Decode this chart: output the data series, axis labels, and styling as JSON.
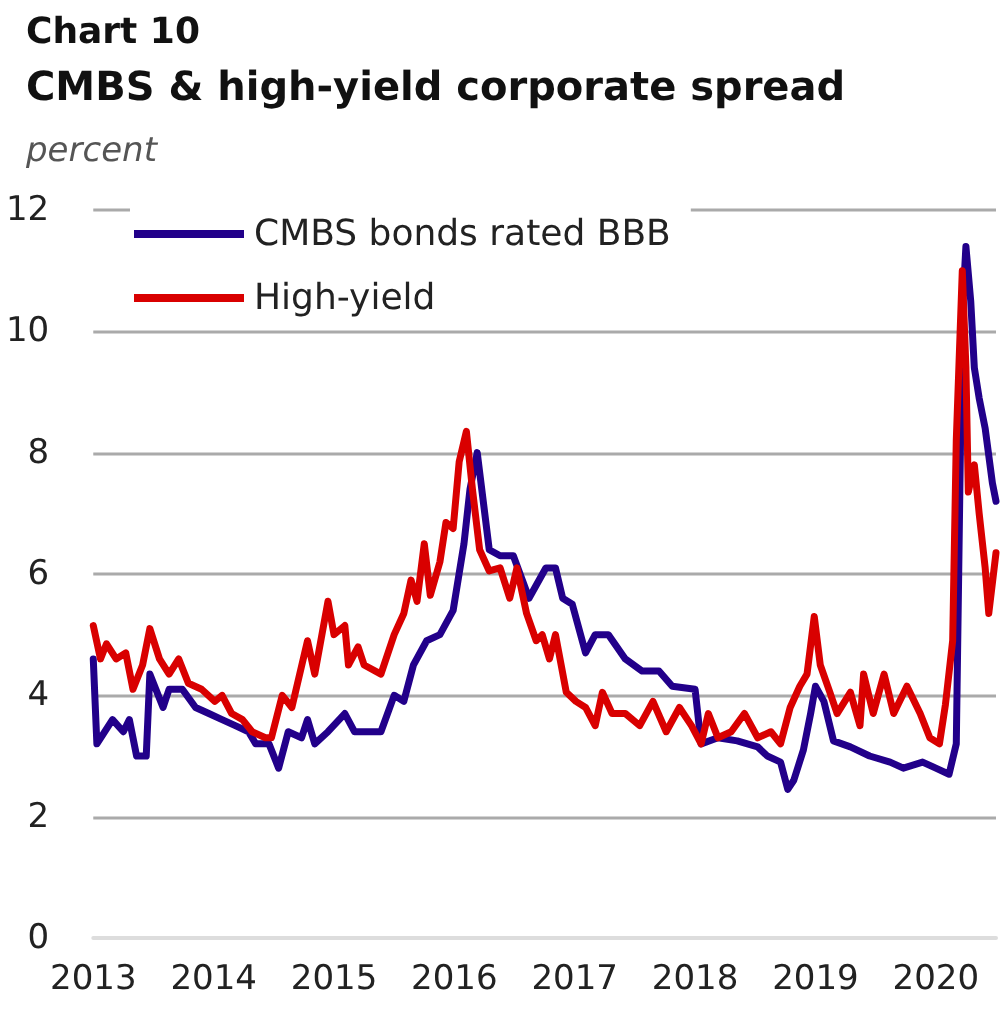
{
  "chart_data": {
    "type": "line",
    "title": "Chart 10",
    "subtitle": "CMBS & high-yield corporate spread",
    "ylabel": "percent",
    "xlim": [
      2013,
      2020.5
    ],
    "xticks": [
      2013,
      2014,
      2015,
      2016,
      2017,
      2018,
      2019,
      2020
    ],
    "ylim": [
      0,
      12
    ],
    "yticks": [
      0,
      2,
      4,
      6,
      8,
      10,
      12
    ],
    "grid": "y",
    "legend": "top left",
    "marker": "none",
    "line_style": "solid",
    "series": [
      {
        "name": "CMBS bonds rated BBB",
        "color": "#22008a",
        "x": [
          2013.0,
          2013.03,
          2013.16,
          2013.25,
          2013.3,
          2013.36,
          2013.44,
          2013.47,
          2013.58,
          2013.63,
          2013.74,
          2013.85,
          2013.96,
          2014.07,
          2014.18,
          2014.29,
          2014.35,
          2014.46,
          2014.54,
          2014.62,
          2014.73,
          2014.78,
          2014.84,
          2014.95,
          2015.09,
          2015.17,
          2015.39,
          2015.5,
          2015.58,
          2015.66,
          2015.77,
          2015.88,
          2015.99,
          2016.08,
          2016.13,
          2016.19,
          2016.24,
          2016.29,
          2016.38,
          2016.49,
          2016.62,
          2016.76,
          2016.84,
          2016.9,
          2016.98,
          2017.09,
          2017.17,
          2017.28,
          2017.42,
          2017.56,
          2017.7,
          2017.81,
          2018.0,
          2018.05,
          2018.19,
          2018.35,
          2018.52,
          2018.6,
          2018.71,
          2018.77,
          2018.82,
          2018.9,
          2018.96,
          2019.0,
          2019.07,
          2019.15,
          2019.29,
          2019.45,
          2019.62,
          2019.73,
          2019.89,
          2020.0,
          2020.11,
          2020.17,
          2020.19,
          2020.22,
          2020.25,
          2020.29,
          2020.32,
          2020.36,
          2020.41,
          2020.47,
          2020.5
        ],
        "values": [
          4.6,
          3.2,
          3.6,
          3.4,
          3.6,
          3.0,
          3.0,
          4.35,
          3.8,
          4.1,
          4.1,
          3.8,
          3.7,
          3.6,
          3.5,
          3.4,
          3.2,
          3.2,
          2.8,
          3.4,
          3.3,
          3.6,
          3.2,
          3.4,
          3.7,
          3.4,
          3.4,
          4.0,
          3.9,
          4.5,
          4.9,
          5.0,
          5.4,
          6.5,
          7.4,
          8.0,
          7.2,
          6.4,
          6.3,
          6.3,
          5.6,
          6.1,
          6.1,
          5.6,
          5.5,
          4.7,
          5.0,
          5.0,
          4.6,
          4.4,
          4.4,
          4.15,
          4.1,
          3.2,
          3.3,
          3.25,
          3.15,
          3.0,
          2.9,
          2.45,
          2.6,
          3.1,
          3.7,
          4.15,
          3.9,
          3.25,
          3.15,
          3.0,
          2.9,
          2.8,
          2.9,
          2.8,
          2.7,
          3.2,
          6.0,
          10.3,
          11.4,
          10.5,
          9.4,
          8.9,
          8.4,
          7.5,
          7.2
        ]
      },
      {
        "name": "High-yield",
        "color": "#d90000",
        "x": [
          2013.0,
          2013.06,
          2013.11,
          2013.19,
          2013.27,
          2013.33,
          2013.41,
          2013.47,
          2013.55,
          2013.63,
          2013.71,
          2013.79,
          2013.9,
          2014.01,
          2014.07,
          2014.15,
          2014.24,
          2014.32,
          2014.43,
          2014.48,
          2014.57,
          2014.65,
          2014.78,
          2014.84,
          2014.95,
          2015.0,
          2015.09,
          2015.12,
          2015.2,
          2015.25,
          2015.39,
          2015.5,
          2015.58,
          2015.64,
          2015.69,
          2015.75,
          2015.8,
          2015.88,
          2015.93,
          2015.99,
          2016.04,
          2016.1,
          2016.15,
          2016.21,
          2016.29,
          2016.38,
          2016.46,
          2016.52,
          2016.6,
          2016.68,
          2016.73,
          2016.79,
          2016.84,
          2016.93,
          2017.01,
          2017.09,
          2017.17,
          2017.23,
          2017.31,
          2017.42,
          2017.54,
          2017.65,
          2017.76,
          2017.87,
          2017.97,
          2018.05,
          2018.11,
          2018.19,
          2018.3,
          2018.41,
          2018.52,
          2018.63,
          2018.71,
          2018.79,
          2018.87,
          2018.93,
          2018.99,
          2019.04,
          2019.12,
          2019.18,
          2019.29,
          2019.37,
          2019.4,
          2019.48,
          2019.57,
          2019.65,
          2019.76,
          2019.87,
          2019.95,
          2020.03,
          2020.08,
          2020.14,
          2020.17,
          2020.22,
          2020.25,
          2020.27,
          2020.32,
          2020.36,
          2020.41,
          2020.44,
          2020.5
        ],
        "values": [
          5.15,
          4.6,
          4.85,
          4.6,
          4.7,
          4.1,
          4.5,
          5.1,
          4.6,
          4.35,
          4.6,
          4.2,
          4.1,
          3.9,
          4.0,
          3.7,
          3.6,
          3.4,
          3.3,
          3.3,
          4.0,
          3.8,
          4.9,
          4.35,
          5.55,
          5.0,
          5.15,
          4.5,
          4.8,
          4.5,
          4.35,
          5.0,
          5.35,
          5.9,
          5.55,
          6.5,
          5.65,
          6.2,
          6.85,
          6.75,
          7.85,
          8.35,
          7.4,
          6.4,
          6.05,
          6.1,
          5.6,
          6.1,
          5.35,
          4.9,
          5.0,
          4.6,
          5.0,
          4.05,
          3.9,
          3.8,
          3.5,
          4.05,
          3.7,
          3.7,
          3.5,
          3.9,
          3.4,
          3.8,
          3.5,
          3.2,
          3.7,
          3.3,
          3.4,
          3.7,
          3.3,
          3.4,
          3.2,
          3.8,
          4.15,
          4.35,
          5.3,
          4.5,
          4.05,
          3.7,
          4.05,
          3.5,
          4.35,
          3.7,
          4.35,
          3.7,
          4.15,
          3.7,
          3.3,
          3.2,
          3.85,
          4.9,
          8.2,
          11.0,
          9.4,
          7.35,
          7.8,
          7.0,
          6.1,
          5.35,
          6.35
        ]
      }
    ]
  }
}
